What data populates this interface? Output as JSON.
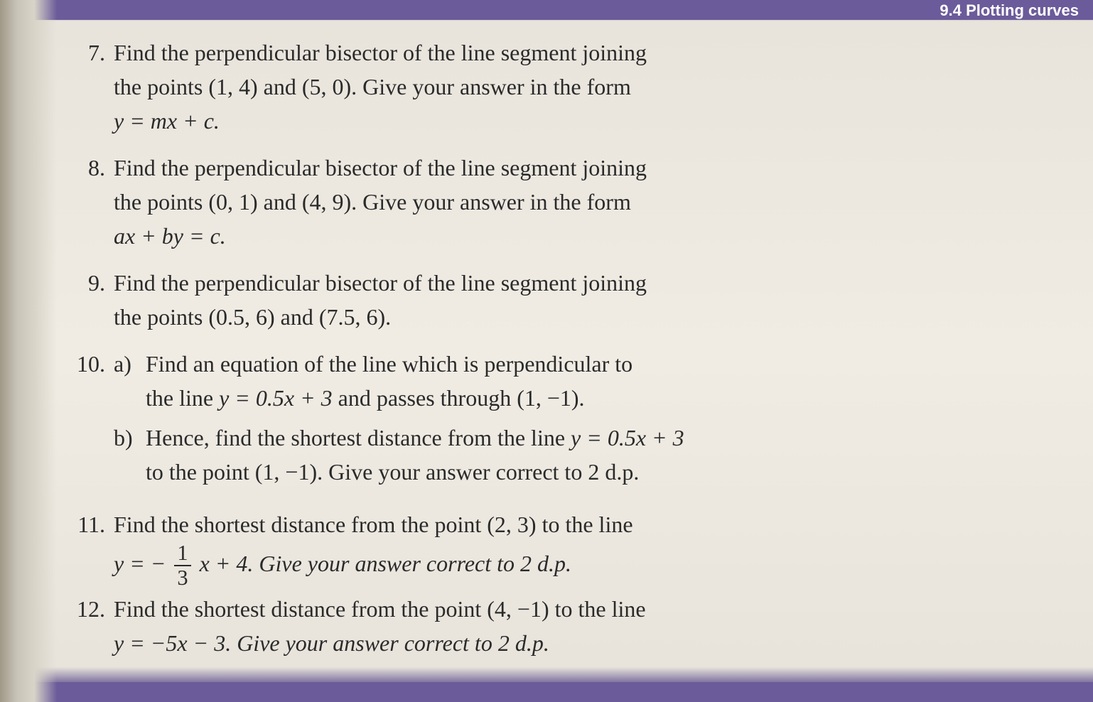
{
  "header": {
    "section": "9.4 Plotting curves"
  },
  "problems": {
    "p7": {
      "num": "7.",
      "line1": "Find the perpendicular bisector of the line segment joining",
      "line2": "the points (1, 4) and (5, 0). Give your answer in the form",
      "eq": "y = mx + c."
    },
    "p8": {
      "num": "8.",
      "line1": "Find the perpendicular bisector of the line segment joining",
      "line2": "the points (0, 1) and (4, 9). Give your answer in the form",
      "eq": "ax + by = c."
    },
    "p9": {
      "num": "9.",
      "line1": "Find the perpendicular bisector of the line segment joining",
      "line2": "the points (0.5, 6) and (7.5, 6)."
    },
    "p10": {
      "num": "10.",
      "a_label": "a)",
      "a_line1": "Find an equation of the line which is perpendicular to",
      "a_line2_pre": "the line ",
      "a_line2_eq": "y = 0.5x + 3",
      "a_line2_post": " and passes through (1, −1).",
      "b_label": "b)",
      "b_line1_pre": "Hence, find the shortest distance from the line ",
      "b_line1_eq": "y = 0.5x + 3",
      "b_line2": "to the point (1, −1). Give your answer correct to 2 d.p."
    },
    "p11": {
      "num": "11.",
      "line1": "Find the shortest distance from the point (2, 3) to the line",
      "eq_pre": "y = − ",
      "frac_num": "1",
      "frac_den": "3",
      "eq_post": " x + 4. Give your answer correct to 2 d.p."
    },
    "p12": {
      "num": "12.",
      "line1": "Find the shortest distance from the point (4, −1) to the line",
      "eq": "y = −5x − 3. Give your answer correct to 2 d.p."
    }
  },
  "styling": {
    "page_bg": "#f0ece4",
    "bar_bg": "#6b5b9a",
    "text_color": "#2a2a2a",
    "header_color": "#ffffff",
    "body_fontsize": 32,
    "header_fontsize": 22,
    "font_family": "Georgia, Times New Roman, serif"
  }
}
